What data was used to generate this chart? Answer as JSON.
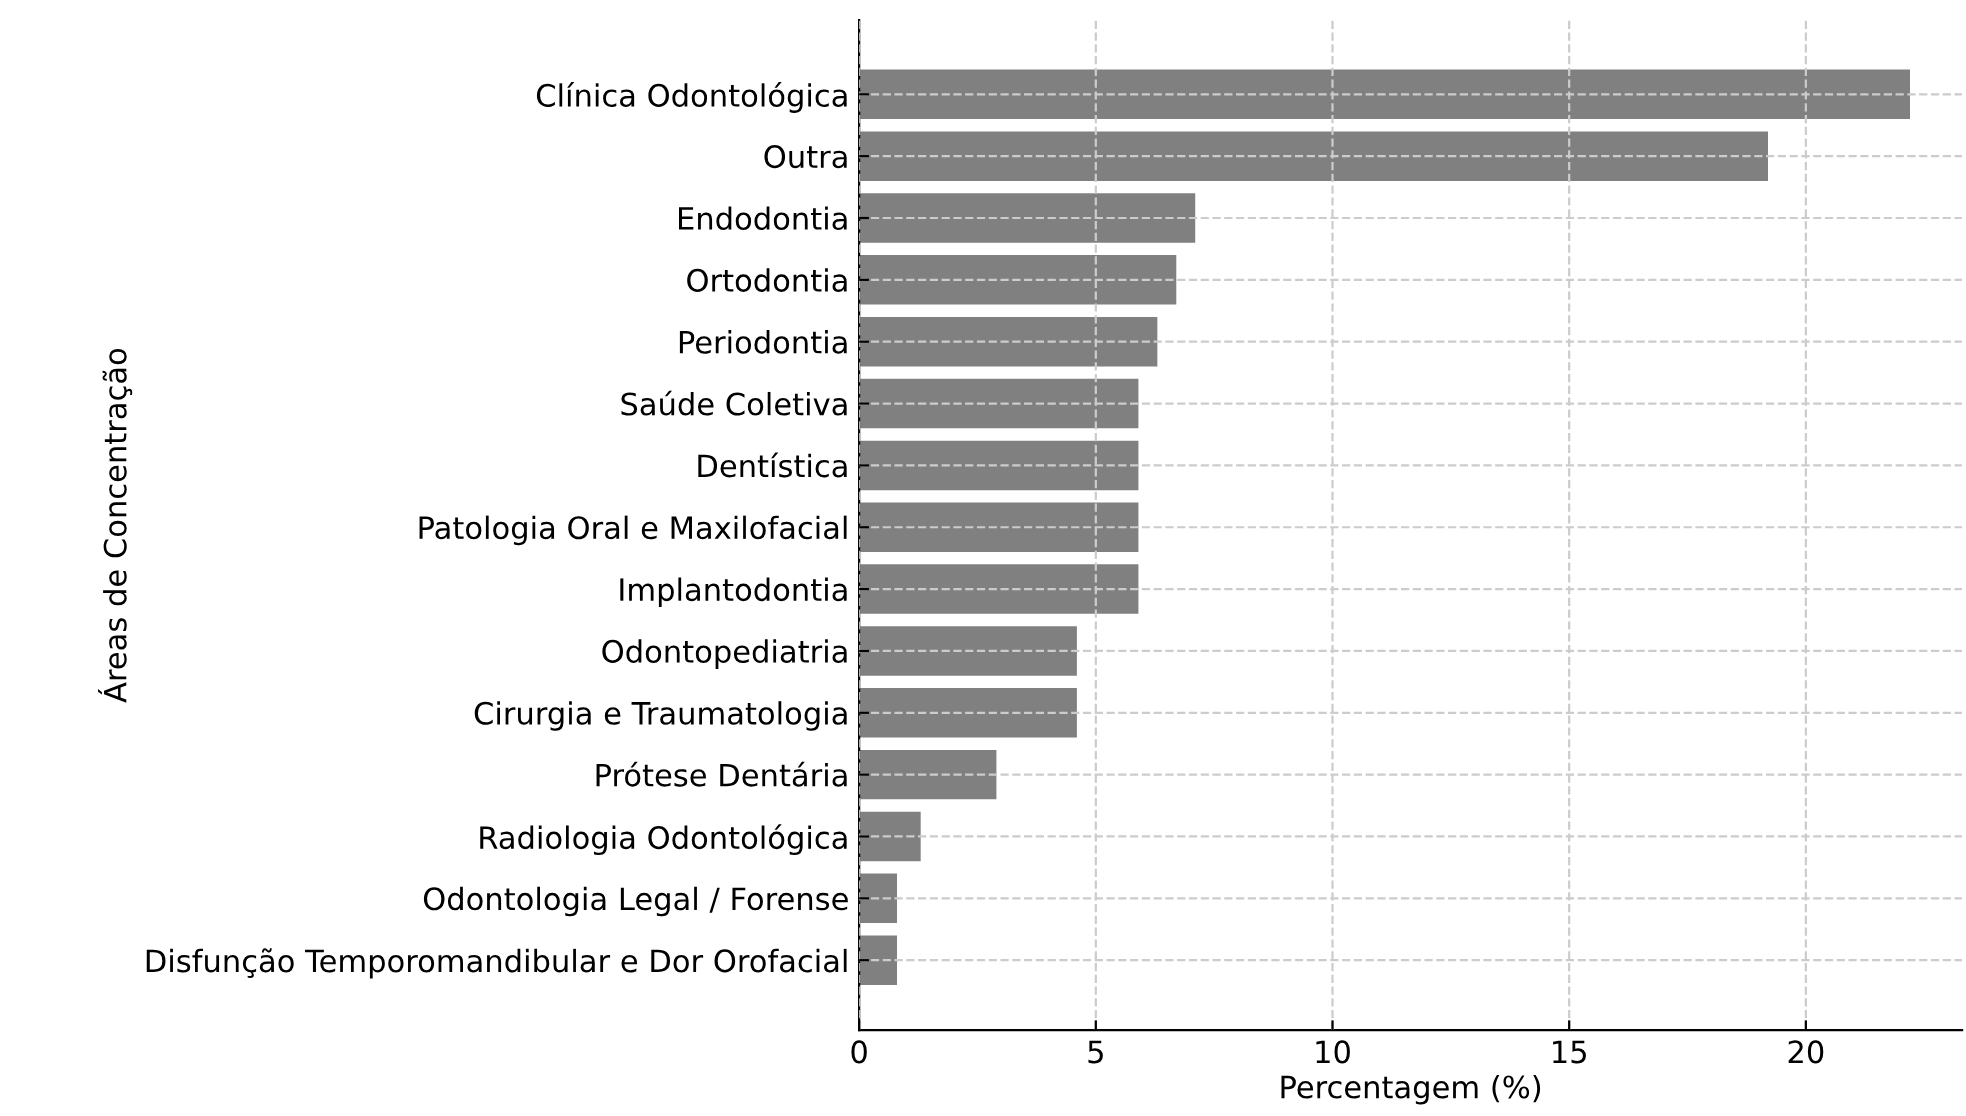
{
  "chart_data": {
    "type": "bar",
    "orientation": "horizontal",
    "xlabel": "Percentagem (%)",
    "ylabel": "Áreas de Concentração",
    "categories": [
      "Clínica Odontológica",
      "Outra",
      "Endodontia",
      "Ortodontia",
      "Periodontia",
      "Saúde Coletiva",
      "Dentística",
      "Patologia Oral e Maxilofacial",
      "Implantodontia",
      "Odontopediatria",
      "Cirurgia e Traumatologia",
      "Prótese Dentária",
      "Radiologia Odontológica",
      "Odontologia Legal / Forense",
      "Disfunção Temporomandibular e Dor Orofacial"
    ],
    "values": [
      22.2,
      19.2,
      7.1,
      6.7,
      6.3,
      5.9,
      5.9,
      5.9,
      5.9,
      4.6,
      4.6,
      2.9,
      1.3,
      0.8,
      0.8
    ],
    "color": "#808080",
    "xlim": [
      0,
      23.3
    ],
    "xticks": [
      0,
      5,
      10,
      15,
      20
    ],
    "grid": true
  }
}
